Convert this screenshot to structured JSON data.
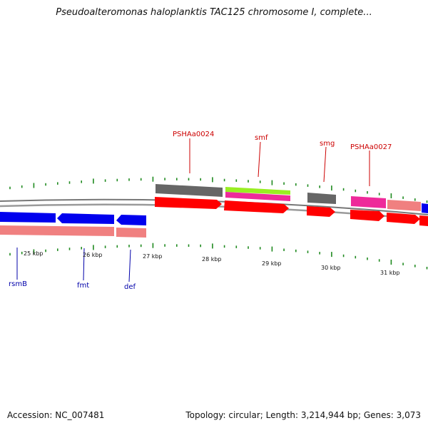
{
  "title": "Pseudoalteromonas haloplanktis TAC125 chromosome I, complete...",
  "footer": {
    "accession": "Accession: NC_007481",
    "summary": "Topology: circular; Length: 3,214,944 bp; Genes: 3,073"
  },
  "colors": {
    "backbone": "#8a8a8a",
    "ticks": "#1f8a1f",
    "gene_blue": "#0000ee",
    "gene_red": "#ff0000",
    "gene_salmon": "#f08080",
    "gene_gray": "#666666",
    "gene_pink": "#ee2a9a",
    "gene_lime": "#99ee22",
    "label_red": "#cc0000",
    "label_blue": "#0000aa"
  },
  "scale_labels": [
    "25 kbp",
    "26 kbp",
    "27 kbp",
    "28 kbp",
    "29 kbp",
    "30 kbp",
    "31 kbp"
  ],
  "top_labels": [
    "PSHAa0024",
    "smf",
    "smg",
    "PSHAa0027"
  ],
  "bottom_labels": [
    "rsmB",
    "fmt",
    "def"
  ]
}
